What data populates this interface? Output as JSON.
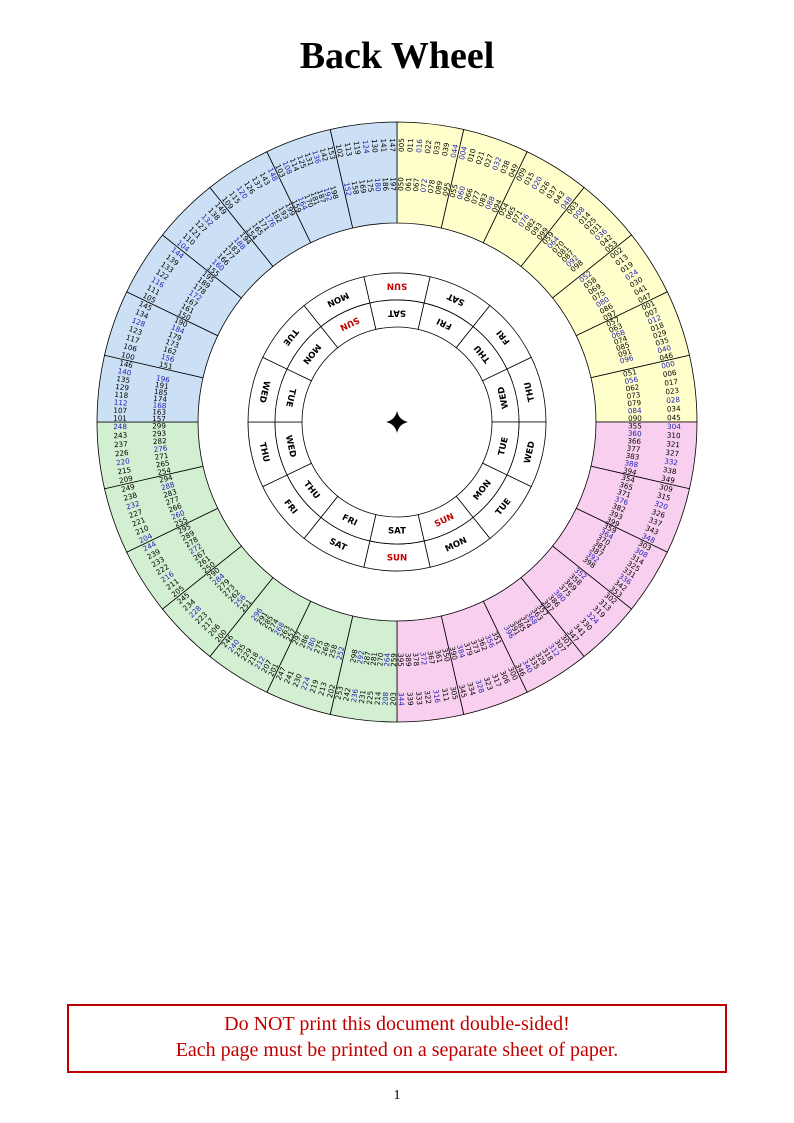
{
  "page": {
    "title": "Back Wheel",
    "page_number": "1",
    "warning_line1": "Do NOT print this document double-sided!",
    "warning_line2": "Each page must be printed on a separate sheet of paper.",
    "warning_color": "#C00000"
  },
  "wheel": {
    "sunday_color": "#C00000",
    "leap_year_color": "#2222B2",
    "common_year_color": "#000000",
    "ring_cell_color": "#FFFFFF",
    "outer_day_ring": [
      "SUN",
      "SAT",
      "FRI",
      "THU",
      "WED",
      "TUE",
      "MON",
      "SUN",
      "SAT",
      "FRI",
      "THU",
      "WED",
      "TUE",
      "MON"
    ],
    "inner_day_ring": [
      "SAT",
      "FRI",
      "THU",
      "WED",
      "TUE",
      "MON",
      "SUN",
      "SAT",
      "FRI",
      "THU",
      "WED",
      "TUE",
      "MON",
      "SUN"
    ],
    "quadrants": [
      {
        "name": "years-000-099",
        "color": "#FFFFCC",
        "start_angle": 0,
        "cells": [
          {
            "day": "SAT",
            "years": [
              5,
              11,
              16,
              22,
              33,
              39,
              44,
              50,
              61,
              67,
              72,
              78,
              89,
              95
            ]
          },
          {
            "day": "FRI",
            "years": [
              4,
              10,
              21,
              27,
              32,
              38,
              49,
              55,
              60,
              66,
              77,
              83,
              88,
              94
            ]
          },
          {
            "day": "THU",
            "years": [
              9,
              15,
              20,
              26,
              37,
              43,
              48,
              54,
              65,
              71,
              76,
              82,
              93,
              99
            ]
          },
          {
            "day": "WED",
            "years": [
              3,
              8,
              14,
              25,
              31,
              36,
              42,
              53,
              59,
              64,
              70,
              81,
              87,
              92,
              98
            ]
          },
          {
            "day": "TUE",
            "years": [
              2,
              13,
              19,
              24,
              30,
              41,
              47,
              52,
              58,
              69,
              75,
              80,
              86,
              97
            ]
          },
          {
            "day": "MON",
            "years": [
              1,
              7,
              12,
              18,
              29,
              35,
              40,
              46,
              57,
              63,
              68,
              74,
              85,
              91,
              96
            ]
          },
          {
            "day": "SUN",
            "years": [
              0,
              6,
              17,
              23,
              28,
              34,
              45,
              51,
              56,
              62,
              73,
              79,
              84,
              90
            ]
          }
        ]
      },
      {
        "name": "years-300-399",
        "color": "#F9CFEF",
        "start_angle": 90,
        "cells": [
          {
            "day": "SAT",
            "years": [
              304,
              310,
              321,
              327,
              332,
              338,
              349,
              355,
              360,
              366,
              377,
              383,
              388,
              394
            ]
          },
          {
            "day": "FRI",
            "years": [
              309,
              315,
              320,
              326,
              337,
              343,
              348,
              354,
              365,
              371,
              376,
              382,
              393,
              399
            ]
          },
          {
            "day": "THU",
            "years": [
              303,
              308,
              314,
              325,
              331,
              336,
              342,
              353,
              359,
              364,
              370,
              381,
              387,
              392,
              398
            ]
          },
          {
            "day": "WED",
            "years": [
              302,
              313,
              319,
              324,
              330,
              341,
              347,
              352,
              358,
              369,
              375,
              380,
              386,
              397
            ]
          },
          {
            "day": "TUE",
            "years": [
              301,
              307,
              312,
              318,
              329,
              335,
              340,
              346,
              357,
              363,
              368,
              374,
              385,
              391,
              396
            ]
          },
          {
            "day": "MON",
            "years": [
              300,
              306,
              317,
              323,
              328,
              334,
              345,
              351,
              356,
              362,
              373,
              379,
              384,
              390
            ]
          },
          {
            "day": "SUN",
            "years": [
              305,
              311,
              316,
              322,
              333,
              339,
              344,
              350,
              361,
              367,
              372,
              378,
              389,
              395
            ]
          }
        ]
      },
      {
        "name": "years-200-299",
        "color": "#D2EFD2",
        "start_angle": 180,
        "cells": [
          {
            "day": "SAT",
            "years": [
              203,
              208,
              214,
              225,
              231,
              236,
              242,
              253,
              259,
              264,
              270,
              281,
              287,
              292,
              298
            ]
          },
          {
            "day": "FRI",
            "years": [
              202,
              213,
              219,
              224,
              230,
              241,
              247,
              252,
              258,
              269,
              275,
              280,
              286,
              297
            ]
          },
          {
            "day": "THU",
            "years": [
              201,
              207,
              212,
              218,
              229,
              235,
              240,
              246,
              257,
              263,
              268,
              274,
              285,
              291,
              296
            ]
          },
          {
            "day": "WED",
            "years": [
              200,
              206,
              217,
              223,
              228,
              234,
              245,
              251,
              256,
              262,
              273,
              279,
              284,
              290
            ]
          },
          {
            "day": "TUE",
            "years": [
              205,
              211,
              216,
              222,
              233,
              239,
              244,
              250,
              261,
              267,
              272,
              278,
              289,
              295
            ]
          },
          {
            "day": "MON",
            "years": [
              204,
              210,
              221,
              227,
              232,
              238,
              249,
              255,
              260,
              266,
              277,
              283,
              288,
              294
            ]
          },
          {
            "day": "SUN",
            "years": [
              209,
              215,
              220,
              226,
              237,
              243,
              248,
              254,
              265,
              271,
              276,
              282,
              293,
              299
            ]
          }
        ]
      },
      {
        "name": "years-100-199",
        "color": "#CCE0F5",
        "start_angle": 270,
        "cells": [
          {
            "day": "SAT",
            "years": [
              101,
              107,
              112,
              118,
              129,
              135,
              140,
              146,
              157,
              163,
              168,
              174,
              185,
              191,
              196
            ]
          },
          {
            "day": "FRI",
            "years": [
              100,
              106,
              117,
              123,
              128,
              134,
              145,
              151,
              156,
              162,
              173,
              179,
              184,
              190
            ]
          },
          {
            "day": "THU",
            "years": [
              105,
              111,
              116,
              122,
              133,
              139,
              144,
              150,
              161,
              167,
              172,
              178,
              189,
              195
            ]
          },
          {
            "day": "WED",
            "years": [
              104,
              110,
              121,
              127,
              132,
              138,
              149,
              155,
              160,
              166,
              177,
              183,
              188,
              194
            ]
          },
          {
            "day": "TUE",
            "years": [
              109,
              115,
              120,
              126,
              137,
              143,
              148,
              154,
              165,
              171,
              176,
              182,
              193,
              199
            ]
          },
          {
            "day": "MON",
            "years": [
              103,
              108,
              114,
              125,
              131,
              136,
              142,
              153,
              159,
              164,
              170,
              181,
              187,
              192,
              198
            ]
          },
          {
            "day": "SUN",
            "years": [
              102,
              113,
              119,
              124,
              130,
              141,
              147,
              152,
              158,
              169,
              175,
              180,
              186,
              197
            ]
          }
        ]
      }
    ]
  }
}
